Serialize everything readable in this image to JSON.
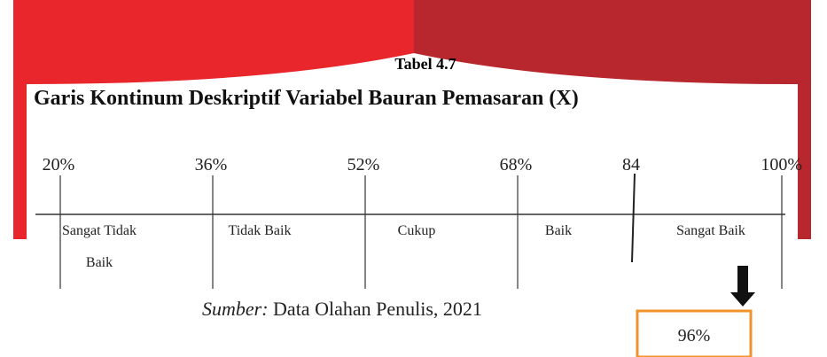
{
  "caption": "Tabel 4.7",
  "title": "Garis Kontinum Deskriptif Variabel Bauran Pemasaran (X)",
  "scale": [
    "20%",
    "36%",
    "52%",
    "68%",
    "84",
    "100%"
  ],
  "categories": [
    [
      "Sangat Tidak",
      "Baik"
    ],
    [
      "Tidak Baik"
    ],
    [
      "Cukup"
    ],
    [
      "Baik"
    ],
    [
      "Sangat Baik"
    ]
  ],
  "source": {
    "prefix": "Sumber:",
    "text": "Data Olahan Penulis, 2021"
  },
  "result": "96%"
}
